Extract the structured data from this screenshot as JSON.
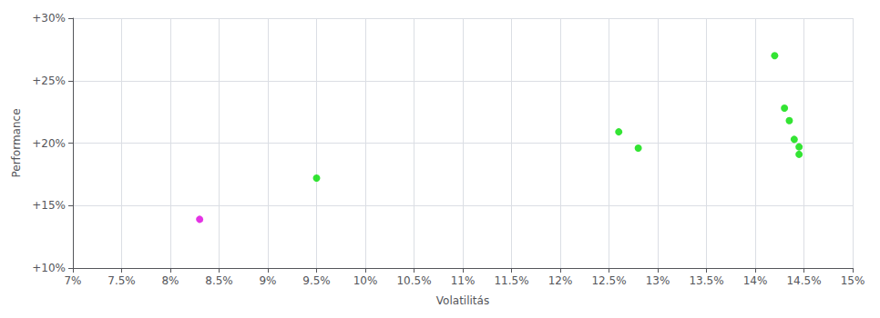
{
  "chart_data": {
    "type": "scatter",
    "xlabel": "Volatilitás",
    "ylabel": "Performance",
    "series": [
      {
        "color": "#00dd00",
        "values": [
          [
            0.095,
            0.172
          ],
          [
            0.126,
            0.209
          ],
          [
            0.128,
            0.196
          ],
          [
            0.142,
            0.27
          ],
          [
            0.143,
            0.228
          ],
          [
            0.1435,
            0.218
          ],
          [
            0.144,
            0.203
          ],
          [
            0.1445,
            0.197
          ],
          [
            0.1445,
            0.191
          ]
        ]
      },
      {
        "color": "#dd00dd",
        "values": [
          [
            0.083,
            0.139
          ]
        ]
      }
    ],
    "xlim": [
      0.07,
      0.15
    ],
    "ylim": [
      0.1,
      0.3
    ],
    "xticks": [
      {
        "value": 0.07,
        "label": "7%"
      },
      {
        "value": 0.075,
        "label": "7.5%"
      },
      {
        "value": 0.08,
        "label": "8%"
      },
      {
        "value": 0.085,
        "label": "8.5%"
      },
      {
        "value": 0.09,
        "label": "9%"
      },
      {
        "value": 0.095,
        "label": "9.5%"
      },
      {
        "value": 0.1,
        "label": "10%"
      },
      {
        "value": 0.105,
        "label": "10.5%"
      },
      {
        "value": 0.11,
        "label": "11%"
      },
      {
        "value": 0.115,
        "label": "11.5%"
      },
      {
        "value": 0.12,
        "label": "12%"
      },
      {
        "value": 0.125,
        "label": "12.5%"
      },
      {
        "value": 0.13,
        "label": "13%"
      },
      {
        "value": 0.135,
        "label": "13.5%"
      },
      {
        "value": 0.14,
        "label": "14%"
      },
      {
        "value": 0.145,
        "label": "14.5%"
      },
      {
        "value": 0.15,
        "label": "15%"
      }
    ],
    "yticks": [
      {
        "value": 0.1,
        "label": "+10%"
      },
      {
        "value": 0.15,
        "label": "+15%"
      },
      {
        "value": 0.2,
        "label": "+20%"
      },
      {
        "value": 0.25,
        "label": "+25%"
      },
      {
        "value": 0.3,
        "label": "+30%"
      }
    ],
    "grid": true
  }
}
